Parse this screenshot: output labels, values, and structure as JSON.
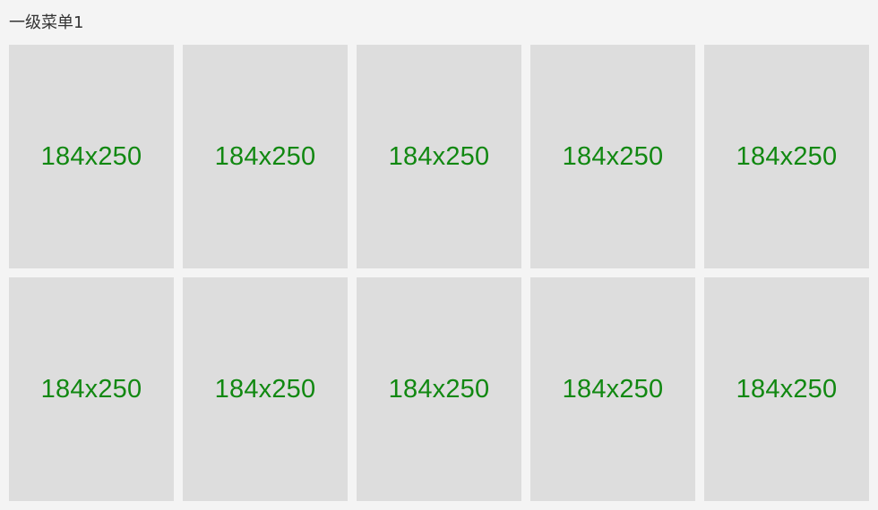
{
  "menu": {
    "title": "一级菜单1"
  },
  "colors": {
    "page_background": "#f4f4f4",
    "tile_background": "#dddddd",
    "tile_text": "#118811",
    "title_text": "#333333"
  },
  "grid": {
    "items": [
      {
        "label": "184x250"
      },
      {
        "label": "184x250"
      },
      {
        "label": "184x250"
      },
      {
        "label": "184x250"
      },
      {
        "label": "184x250"
      },
      {
        "label": "184x250"
      },
      {
        "label": "184x250"
      },
      {
        "label": "184x250"
      },
      {
        "label": "184x250"
      },
      {
        "label": "184x250"
      }
    ]
  }
}
